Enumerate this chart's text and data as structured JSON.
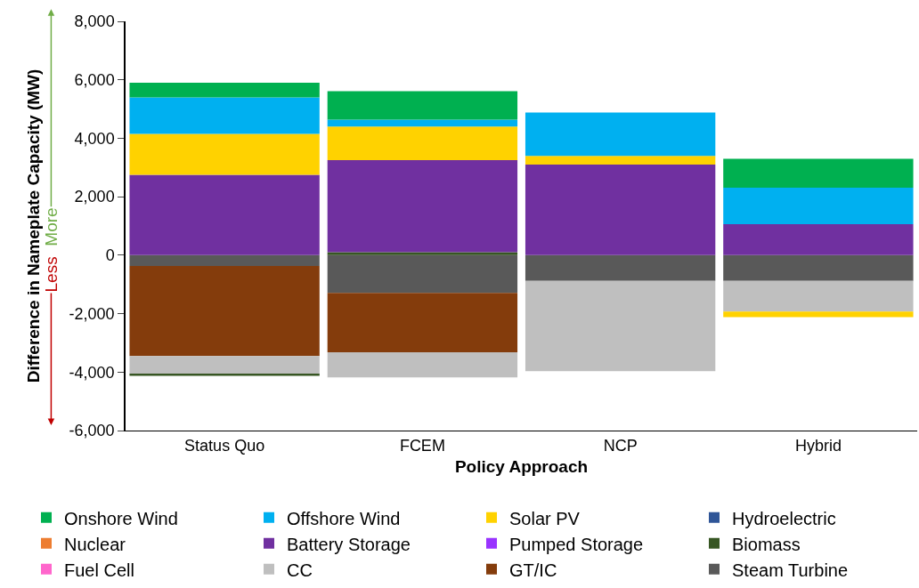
{
  "chart_data": {
    "type": "bar",
    "stacked": true,
    "xlabel": "Policy Approach",
    "ylabel": "Difference in Nameplate Capacity (MW)",
    "categories": [
      "Status Quo",
      "FCEM",
      "NCP",
      "Hybrid"
    ],
    "series": [
      {
        "name": "Steam Turbine",
        "color": "#595959",
        "values": [
          -370,
          -1290,
          -880,
          -880
        ]
      },
      {
        "name": "GT/IC",
        "color": "#843c0c",
        "values": [
          -3080,
          -2030,
          0,
          0
        ]
      },
      {
        "name": "CC",
        "color": "#bfbfbf",
        "values": [
          -620,
          -860,
          -3090,
          -1050
        ]
      },
      {
        "name": "Fuel Cell",
        "color": "#ff66cc",
        "values": [
          0,
          0,
          0,
          0
        ]
      },
      {
        "name": "Biomass",
        "color": "#375623",
        "values": [
          -60,
          100,
          0,
          0
        ]
      },
      {
        "name": "Pumped Storage",
        "color": "#9933ff",
        "values": [
          0,
          0,
          0,
          0
        ]
      },
      {
        "name": "Battery Storage",
        "color": "#7030a0",
        "values": [
          2750,
          3150,
          3100,
          1060
        ]
      },
      {
        "name": "Nuclear",
        "color": "#ed7d31",
        "values": [
          0,
          0,
          0,
          0
        ]
      },
      {
        "name": "Hydroelectric",
        "color": "#2f5597",
        "values": [
          0,
          0,
          0,
          0
        ]
      },
      {
        "name": "Solar PV",
        "color": "#ffd200",
        "values": [
          1400,
          1150,
          300,
          -190
        ]
      },
      {
        "name": "Offshore Wind",
        "color": "#00b0f0",
        "values": [
          1250,
          240,
          1480,
          1250
        ]
      },
      {
        "name": "Onshore Wind",
        "color": "#00b050",
        "values": [
          500,
          970,
          0,
          990
        ]
      }
    ],
    "ylim": [
      -6000,
      8000
    ],
    "yticks": [
      {
        "value": -6000,
        "label": "-6,000"
      },
      {
        "value": -4000,
        "label": "-4,000"
      },
      {
        "value": -2000,
        "label": "-2,000"
      },
      {
        "value": 0,
        "label": "0"
      },
      {
        "value": 2000,
        "label": "2,000"
      },
      {
        "value": 4000,
        "label": "4,000"
      },
      {
        "value": 6000,
        "label": "6,000"
      },
      {
        "value": 8000,
        "label": "8,000"
      }
    ],
    "grid": false,
    "legend": "bottom",
    "annotations": [
      "More",
      "Less"
    ]
  }
}
